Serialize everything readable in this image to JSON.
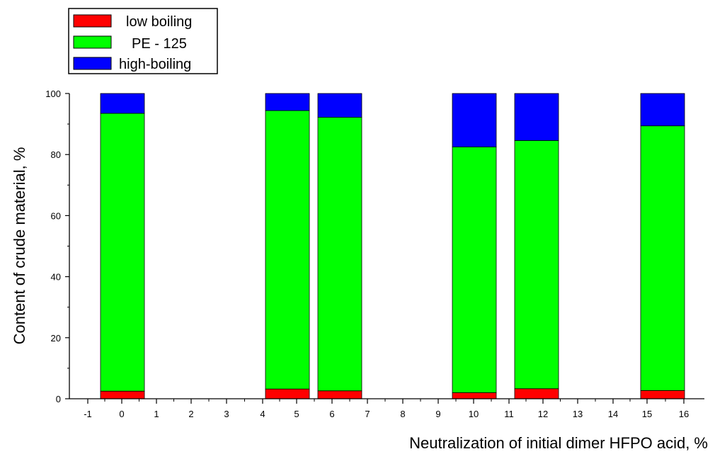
{
  "chart_data": {
    "type": "bar",
    "stacked": true,
    "x": [
      0,
      5,
      6,
      10,
      12,
      16
    ],
    "x_label_overrides": {
      "16": "15 16"
    },
    "x_tick_values": [
      -1,
      0,
      1,
      2,
      3,
      4,
      5,
      6,
      7,
      8,
      9,
      10,
      11,
      12,
      13,
      14,
      15,
      16
    ],
    "x_tick_labels": [
      "-1",
      "0",
      "1",
      "2",
      "3",
      "4",
      "5",
      "6",
      "7",
      "8",
      "9",
      "10",
      "11",
      "12",
      "13",
      "14",
      "15",
      "16"
    ],
    "series": [
      {
        "name": "low boiling",
        "color": "#ff0000",
        "values": [
          2.5,
          3.2,
          2.6,
          2.0,
          3.3,
          2.7
        ]
      },
      {
        "name": "PE - 125",
        "color": "#00ff00",
        "values": [
          91.0,
          91.2,
          89.6,
          80.5,
          81.3,
          86.7
        ]
      },
      {
        "name": "high-boiling",
        "color": "#0000ff",
        "values": [
          6.5,
          5.6,
          7.8,
          17.5,
          15.4,
          10.6
        ]
      }
    ],
    "ylim": [
      0,
      100
    ],
    "y_ticks": [
      0,
      20,
      40,
      60,
      80,
      100
    ],
    "xlabel": "Neutralization of initial dimer HFPO acid, %",
    "ylabel": "Content of crude material, %",
    "legend_position": "top-left",
    "grid": false
  }
}
